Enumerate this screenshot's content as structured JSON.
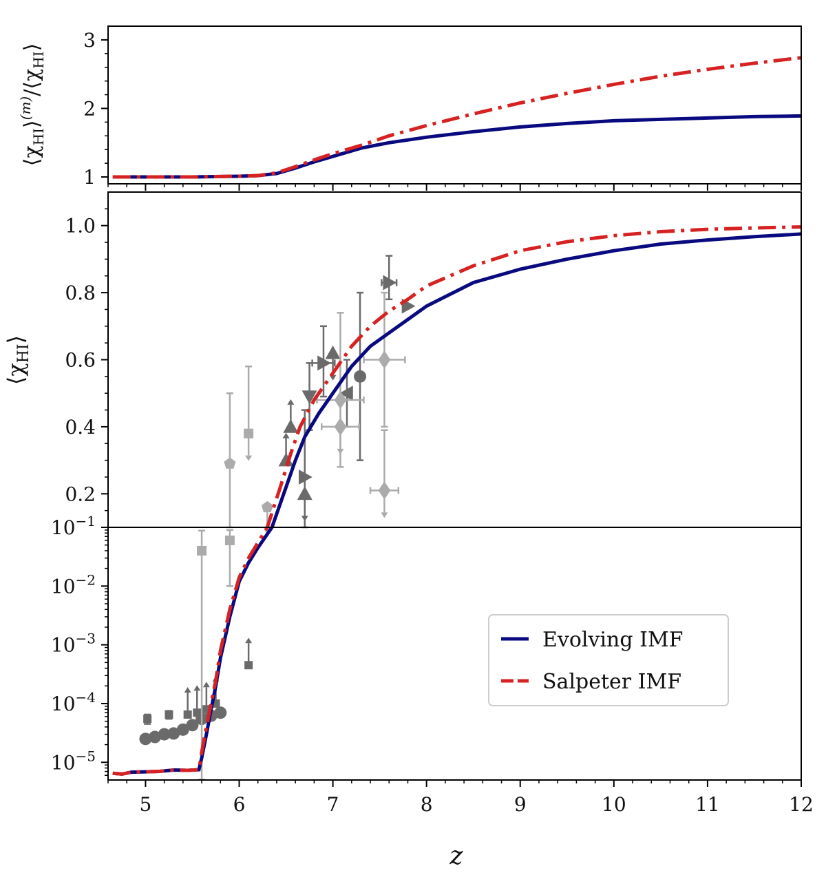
{
  "chart_data": {
    "type": "line",
    "xlabel": "z",
    "xlim": [
      4.6,
      12
    ],
    "x_ticks": [
      "5",
      "6",
      "7",
      "8",
      "9",
      "10",
      "11",
      "12"
    ],
    "x_tick_values": [
      5,
      6,
      7,
      8,
      9,
      10,
      11,
      12
    ],
    "colors": {
      "evolving": "#0a0a80",
      "salpeter": "#d62222",
      "obs_dark": "#6a6a6a",
      "obs_light": "#ababab"
    },
    "legend": {
      "position": "lower-right",
      "entries": [
        "Evolving IMF",
        "Salpeter IMF"
      ]
    },
    "top_panel": {
      "ylabel_parts": [
        "⟨χ",
        "HI",
        "⟩",
        "(m)",
        "/⟨χ",
        "HI",
        "⟩"
      ],
      "ylim": [
        0.9,
        3.2
      ],
      "y_ticks": [
        "1",
        "2",
        "3"
      ],
      "y_tick_values": [
        1,
        2,
        3
      ],
      "series": [
        {
          "name": "Evolving IMF",
          "style": "solid",
          "x": [
            4.65,
            5.0,
            5.5,
            6.0,
            6.2,
            6.4,
            6.6,
            6.8,
            7.0,
            7.3,
            7.6,
            8.0,
            8.5,
            9.0,
            9.5,
            10.0,
            10.5,
            11.0,
            11.5,
            12.0
          ],
          "y": [
            1.0,
            1.0,
            1.0,
            1.01,
            1.02,
            1.05,
            1.13,
            1.22,
            1.3,
            1.42,
            1.5,
            1.58,
            1.66,
            1.73,
            1.78,
            1.82,
            1.84,
            1.86,
            1.88,
            1.89
          ]
        },
        {
          "name": "Salpeter IMF",
          "style": "dashdot",
          "x": [
            4.65,
            5.0,
            5.5,
            6.0,
            6.2,
            6.4,
            6.6,
            6.8,
            7.0,
            7.3,
            7.6,
            8.0,
            8.5,
            9.0,
            9.5,
            10.0,
            10.5,
            11.0,
            11.5,
            12.0
          ],
          "y": [
            1.0,
            1.0,
            1.0,
            1.01,
            1.02,
            1.06,
            1.15,
            1.25,
            1.34,
            1.46,
            1.6,
            1.75,
            1.92,
            2.08,
            2.22,
            2.35,
            2.47,
            2.57,
            2.66,
            2.74
          ]
        }
      ]
    },
    "main_panel": {
      "ylabel_parts": [
        "⟨χ",
        "HI",
        "⟩"
      ],
      "linear_ylim": [
        0.1,
        1.1
      ],
      "linear_ticks": [
        "0.2",
        "0.4",
        "0.6",
        "0.8",
        "1.0"
      ],
      "linear_tick_values": [
        0.2,
        0.4,
        0.6,
        0.8,
        1.0
      ],
      "log_ylim": [
        5e-06,
        0.1
      ],
      "log_ticks": [
        {
          "base": "10",
          "exp": "−1",
          "value": 0.1
        },
        {
          "base": "10",
          "exp": "−2",
          "value": 0.01
        },
        {
          "base": "10",
          "exp": "−3",
          "value": 0.001
        },
        {
          "base": "10",
          "exp": "−4",
          "value": 0.0001
        },
        {
          "base": "10",
          "exp": "−5",
          "value": 1e-05
        }
      ],
      "series": [
        {
          "name": "Evolving IMF",
          "style": "solid",
          "x": [
            4.65,
            4.75,
            4.85,
            5.0,
            5.15,
            5.3,
            5.45,
            5.57,
            5.6,
            5.65,
            5.7,
            5.75,
            5.8,
            5.9,
            6.0,
            6.1,
            6.2,
            6.35,
            6.5,
            6.6,
            6.7,
            6.85,
            7.0,
            7.2,
            7.4,
            7.6,
            7.8,
            8.0,
            8.5,
            9.0,
            9.5,
            10.0,
            10.5,
            11.0,
            11.5,
            12.0
          ],
          "y": [
            6.5e-06,
            6.3e-06,
            6.8e-06,
            6.9e-06,
            7e-06,
            7.4e-06,
            7.3e-06,
            7.5e-06,
            1.2e-05,
            3e-05,
            8e-05,
            0.0002,
            0.0006,
            0.003,
            0.012,
            0.025,
            0.045,
            0.1,
            0.22,
            0.3,
            0.37,
            0.44,
            0.5,
            0.58,
            0.64,
            0.68,
            0.72,
            0.76,
            0.83,
            0.87,
            0.9,
            0.925,
            0.945,
            0.957,
            0.967,
            0.975
          ]
        },
        {
          "name": "Salpeter IMF",
          "style": "dashdot",
          "x": [
            4.65,
            4.75,
            4.85,
            5.0,
            5.15,
            5.3,
            5.45,
            5.57,
            5.6,
            5.65,
            5.7,
            5.75,
            5.8,
            5.9,
            6.0,
            6.1,
            6.2,
            6.3,
            6.45,
            6.55,
            6.65,
            6.8,
            7.0,
            7.2,
            7.4,
            7.6,
            7.8,
            8.0,
            8.5,
            9.0,
            9.5,
            10.0,
            10.5,
            11.0,
            11.5,
            12.0
          ],
          "y": [
            6.5e-06,
            6.3e-06,
            6.8e-06,
            6.9e-06,
            7e-06,
            7.4e-06,
            7.3e-06,
            7.5e-06,
            1.5e-05,
            4e-05,
            0.0001,
            0.00025,
            0.0008,
            0.004,
            0.014,
            0.03,
            0.055,
            0.1,
            0.23,
            0.32,
            0.4,
            0.48,
            0.56,
            0.64,
            0.7,
            0.745,
            0.78,
            0.82,
            0.88,
            0.925,
            0.952,
            0.97,
            0.982,
            0.989,
            0.993,
            0.996
          ]
        }
      ],
      "observations": [
        {
          "marker": "circle",
          "shade": "dark",
          "x": 5.0,
          "y": 2.5e-05
        },
        {
          "marker": "circle",
          "shade": "dark",
          "x": 5.1,
          "y": 2.7e-05
        },
        {
          "marker": "circle",
          "shade": "dark",
          "x": 5.2,
          "y": 3e-05
        },
        {
          "marker": "circle",
          "shade": "dark",
          "x": 5.3,
          "y": 3.1e-05
        },
        {
          "marker": "circle",
          "shade": "dark",
          "x": 5.4,
          "y": 3.6e-05
        },
        {
          "marker": "circle",
          "shade": "dark",
          "x": 5.5,
          "y": 4.3e-05
        },
        {
          "marker": "circle",
          "shade": "dark",
          "x": 5.6,
          "y": 5.5e-05
        },
        {
          "marker": "circle",
          "shade": "dark",
          "x": 5.7,
          "y": 6.2e-05
        },
        {
          "marker": "circle",
          "shade": "dark",
          "x": 5.8,
          "y": 7e-05
        },
        {
          "marker": "square",
          "shade": "dark",
          "x": 5.02,
          "y": 5.5e-05,
          "xerr": 0.03,
          "yerr_lo": 1e-05,
          "yerr_hi": 1e-05
        },
        {
          "marker": "square",
          "shade": "dark",
          "x": 5.25,
          "y": 6.5e-05,
          "xerr": 0.03,
          "yerr_lo": 1e-05,
          "yerr_hi": 1e-05
        },
        {
          "marker": "square",
          "shade": "dark",
          "x": 5.45,
          "y": 6.5e-05,
          "arrow": "up"
        },
        {
          "marker": "square",
          "shade": "dark",
          "x": 5.55,
          "y": 7e-05,
          "arrow": "up"
        },
        {
          "marker": "square",
          "shade": "dark",
          "x": 5.65,
          "y": 8e-05,
          "arrow": "up"
        },
        {
          "marker": "square",
          "shade": "dark",
          "x": 5.75,
          "y": 0.0001,
          "arrow": "up"
        },
        {
          "marker": "square",
          "shade": "dark",
          "x": 6.1,
          "y": 0.00045,
          "arrow": "up"
        },
        {
          "marker": "square",
          "shade": "light",
          "x": 5.6,
          "y": 0.04,
          "yerr_lo": 0.0399949,
          "yerr_hi": 0.048
        },
        {
          "marker": "square",
          "shade": "light",
          "x": 5.9,
          "y": 0.06,
          "yerr_lo": 0.05,
          "yerr_hi": 0.03
        },
        {
          "marker": "square",
          "shade": "light",
          "x": 6.1,
          "y": 0.38,
          "arrow": "down",
          "yerr_hi": 0.2
        },
        {
          "marker": "pentagon",
          "shade": "light",
          "x": 5.9,
          "y": 0.29,
          "yerr_lo": 0.19,
          "yerr_hi": 0.21
        },
        {
          "marker": "pentagon",
          "shade": "light",
          "x": 6.3,
          "y": 0.16,
          "arrow": "down"
        },
        {
          "marker": "triangle-up",
          "shade": "dark",
          "x": 6.55,
          "y": 0.4,
          "arrow": "up"
        },
        {
          "marker": "triangle-up",
          "shade": "dark",
          "x": 6.5,
          "y": 0.3,
          "arrow": "up"
        },
        {
          "marker": "triangle-up",
          "shade": "dark",
          "x": 6.7,
          "y": 0.2,
          "arrow": "down"
        },
        {
          "marker": "triangle-up",
          "shade": "dark",
          "x": 7.0,
          "y": 0.62,
          "arrow": "down"
        },
        {
          "marker": "triangle-right",
          "shade": "dark",
          "x": 6.7,
          "y": 0.25,
          "yerr_lo": 0.15,
          "yerr_hi": 0.2
        },
        {
          "marker": "triangle-right",
          "shade": "dark",
          "x": 6.9,
          "y": 0.59,
          "yerr_lo": 0.1,
          "yerr_hi": 0.11,
          "xerr": 0.12
        },
        {
          "marker": "triangle-right",
          "shade": "dark",
          "x": 7.6,
          "y": 0.83,
          "yerr_lo": 0.05,
          "yerr_hi": 0.08,
          "xerr": 0.08
        },
        {
          "marker": "triangle-right",
          "shade": "dark",
          "x": 7.8,
          "y": 0.76
        },
        {
          "marker": "triangle-down",
          "shade": "dark",
          "x": 6.75,
          "y": 0.49,
          "yerr_lo": 0.1,
          "yerr_hi": 0.1
        },
        {
          "marker": "triangle-left",
          "shade": "dark",
          "x": 7.15,
          "y": 0.5,
          "yerr_lo": 0.1,
          "yerr_hi": 0.1
        },
        {
          "marker": "circle",
          "shade": "dark",
          "x": 7.29,
          "y": 0.55,
          "yerr_lo": 0.25,
          "yerr_hi": 0.25
        },
        {
          "marker": "diamond",
          "shade": "light",
          "x": 7.08,
          "y": 0.48,
          "xerr": 0.25,
          "yerr_lo": 0.2,
          "yerr_hi": 0.26
        },
        {
          "marker": "diamond",
          "shade": "light",
          "x": 7.08,
          "y": 0.4,
          "xerr": 0.2,
          "arrow": "down"
        },
        {
          "marker": "diamond",
          "shade": "light",
          "x": 7.55,
          "y": 0.6,
          "xerr": 0.22,
          "yerr_lo": 0.2,
          "yerr_hi": 0.2
        },
        {
          "marker": "diamond",
          "shade": "light",
          "x": 7.55,
          "y": 0.21,
          "xerr": 0.15,
          "yerr_hi": 0.18,
          "arrow": "down"
        }
      ]
    }
  }
}
